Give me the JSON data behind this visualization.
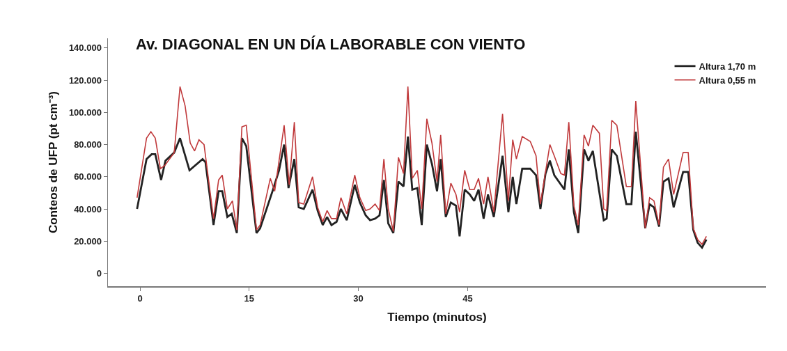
{
  "chart_data": {
    "type": "line",
    "title": "Av. DIAGONAL EN UN DÍA LABORABLE CON VIENTO",
    "xlabel": "Tiempo (minutos)",
    "ylabel": "Conteos de UFP (pt cm⁻³)",
    "xlim": [
      -4.4,
      86
    ],
    "xticks": [
      0,
      15,
      30,
      45
    ],
    "ylim": [
      -8000,
      146000
    ],
    "yticks": [
      {
        "value": 0,
        "label": "0"
      },
      {
        "value": 20000,
        "label": "20.000"
      },
      {
        "value": 40000,
        "label": "40.000"
      },
      {
        "value": 60000,
        "label": "60.000"
      },
      {
        "value": 80000,
        "label": "80.000"
      },
      {
        "value": 100000,
        "label": "100.000"
      },
      {
        "value": 120000,
        "label": "120.000"
      },
      {
        "value": 140000,
        "label": "140.000"
      }
    ],
    "grid": false,
    "legend": "top right",
    "marker": "none",
    "line_style": "solid",
    "series": [
      {
        "name": "Altura 1,70 m",
        "color": "#222222",
        "x": [
          -0.4,
          0.9,
          1.6,
          2.1,
          2.9,
          3.5,
          4.7,
          5.5,
          6.8,
          8.6,
          9.0,
          10.1,
          10.8,
          11.3,
          12.0,
          12.6,
          13.3,
          14.0,
          14.6,
          16.0,
          16.5,
          18.2,
          19.1,
          19.8,
          20.4,
          21.2,
          21.8,
          22.5,
          23.7,
          24.4,
          25.1,
          25.7,
          26.3,
          27.0,
          27.6,
          28.4,
          29.5,
          30.2,
          31.0,
          31.6,
          32.3,
          32.9,
          33.5,
          34.1,
          34.8,
          35.5,
          36.2,
          36.8,
          37.4,
          38.1,
          38.7,
          39.4,
          40.1,
          40.8,
          41.3,
          42.0,
          42.7,
          43.4,
          43.9,
          44.6,
          45.3,
          45.9,
          46.5,
          47.2,
          47.8,
          48.6,
          49.8,
          50.6,
          51.2,
          51.7,
          52.5,
          53.6,
          54.4,
          55.0,
          55.7,
          56.3,
          56.9,
          58.3,
          58.9,
          59.6,
          60.2,
          61.0,
          61.6,
          62.2,
          63.7,
          64.1,
          64.8,
          65.5,
          66.8,
          67.5,
          68.1,
          69.4,
          70.0,
          70.6,
          71.3,
          71.9,
          72.6,
          73.3,
          74.6,
          75.3,
          76.0,
          76.6,
          77.2,
          77.8
        ],
        "values": [
          40000,
          71000,
          74000,
          74000,
          58000,
          70000,
          75000,
          84000,
          64000,
          71000,
          69000,
          30000,
          51000,
          51000,
          35000,
          37000,
          25000,
          84000,
          79000,
          25000,
          28000,
          51000,
          64000,
          80000,
          53000,
          71000,
          41000,
          40000,
          52000,
          39000,
          30000,
          35000,
          30000,
          32000,
          40000,
          33000,
          55000,
          44000,
          36000,
          33000,
          34000,
          36000,
          58000,
          31000,
          25000,
          57000,
          54000,
          85000,
          52000,
          53000,
          30000,
          80000,
          68000,
          51000,
          71000,
          35000,
          44000,
          42000,
          23000,
          52000,
          49000,
          45000,
          52000,
          34000,
          49000,
          35000,
          73000,
          38000,
          60000,
          43000,
          65000,
          65000,
          61000,
          40000,
          62000,
          70000,
          61000,
          52000,
          77000,
          38000,
          25000,
          77000,
          70000,
          76000,
          33000,
          34000,
          77000,
          73000,
          43000,
          43000,
          88000,
          28000,
          43000,
          41000,
          29000,
          57000,
          59000,
          41000,
          63000,
          63000,
          27000,
          19000,
          16000,
          21000
        ]
      },
      {
        "name": "Altura 0,55 m",
        "color": "#c0393b",
        "x": [
          -0.4,
          0.9,
          1.5,
          2.1,
          2.8,
          3.4,
          4.7,
          5.5,
          6.2,
          6.9,
          7.5,
          8.1,
          8.8,
          10.1,
          10.8,
          11.3,
          12.0,
          12.7,
          13.3,
          14.0,
          14.6,
          16.0,
          16.5,
          17.9,
          18.5,
          19.8,
          20.5,
          21.2,
          21.8,
          22.5,
          23.7,
          24.4,
          25.1,
          25.7,
          26.3,
          27.0,
          27.6,
          28.4,
          29.5,
          30.2,
          31.0,
          31.6,
          32.3,
          32.9,
          33.5,
          34.1,
          34.8,
          35.5,
          36.2,
          36.8,
          37.4,
          38.1,
          38.7,
          39.4,
          40.1,
          40.8,
          41.3,
          42.0,
          42.7,
          43.4,
          43.9,
          44.6,
          45.3,
          45.9,
          46.5,
          47.2,
          47.8,
          48.6,
          49.8,
          50.6,
          51.2,
          51.7,
          52.5,
          53.6,
          54.4,
          55.0,
          56.3,
          56.9,
          57.8,
          58.3,
          58.9,
          59.6,
          60.2,
          61.0,
          61.6,
          62.2,
          63.1,
          63.7,
          64.1,
          64.8,
          65.5,
          66.8,
          67.5,
          68.1,
          69.4,
          70.0,
          70.6,
          71.3,
          71.9,
          72.6,
          73.3,
          74.6,
          75.3,
          76.0,
          76.6,
          77.2,
          77.8
        ],
        "values": [
          47000,
          84000,
          88000,
          84000,
          65000,
          67000,
          75000,
          116000,
          104000,
          81000,
          76000,
          83000,
          80000,
          34000,
          58000,
          61000,
          40000,
          45000,
          27000,
          91000,
          92000,
          27000,
          30000,
          59000,
          51000,
          92000,
          55000,
          94000,
          44000,
          43000,
          60000,
          41000,
          32000,
          39000,
          34000,
          34000,
          47000,
          37000,
          61000,
          47000,
          39000,
          40000,
          43000,
          39000,
          71000,
          40000,
          26000,
          72000,
          62000,
          116000,
          59000,
          64000,
          40000,
          96000,
          81000,
          57000,
          86000,
          37000,
          56000,
          49000,
          38000,
          64000,
          52000,
          52000,
          59000,
          43000,
          60000,
          38000,
          99000,
          45000,
          83000,
          71000,
          85000,
          82000,
          73000,
          43000,
          80000,
          73000,
          62000,
          61000,
          94000,
          42000,
          30000,
          86000,
          79000,
          92000,
          87000,
          40000,
          39000,
          95000,
          92000,
          54000,
          54000,
          107000,
          28000,
          47000,
          45000,
          30000,
          66000,
          71000,
          49000,
          75000,
          75000,
          28000,
          21000,
          18000,
          23000
        ]
      }
    ]
  }
}
